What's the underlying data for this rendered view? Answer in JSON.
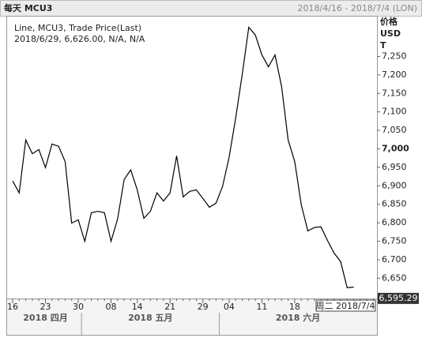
{
  "header": {
    "title": "每天 MCU3",
    "range": "2018/4/16 - 2018/7/4 (LON)"
  },
  "chart_data": {
    "type": "line",
    "legend_lines": [
      "Line, MCU3, Trade Price(Last)",
      "2018/6/29, 6,626.00, N/A, N/A"
    ],
    "axis_title": [
      "价格",
      "USD",
      "T"
    ],
    "categories": [
      "16",
      null,
      null,
      null,
      null,
      "23",
      null,
      null,
      null,
      null,
      "30",
      null,
      null,
      null,
      null,
      "08",
      null,
      null,
      null,
      "14",
      null,
      null,
      null,
      null,
      "21",
      null,
      null,
      null,
      null,
      "29",
      null,
      null,
      null,
      "04",
      null,
      null,
      null,
      null,
      "11",
      null,
      null,
      null,
      null,
      "18",
      null,
      null,
      null,
      null,
      null,
      null,
      null,
      null,
      null,
      null,
      null,
      null
    ],
    "months": [
      "2018 四月",
      "2018 五月",
      "2018 六月"
    ],
    "series": [
      {
        "name": "MCU3",
        "color": "#000000",
        "values": [
          6913,
          6881,
          7024,
          6987,
          6998,
          6949,
          7013,
          7007,
          6966,
          6799,
          6808,
          6750,
          6827,
          6831,
          6827,
          6750,
          6810,
          6917,
          6943,
          6889,
          6812,
          6831,
          6881,
          6859,
          6881,
          6981,
          6870,
          6885,
          6889,
          6866,
          6842,
          6853,
          6898,
          6977,
          7083,
          7201,
          7329,
          7308,
          7254,
          7222,
          7254,
          7169,
          7024,
          6966,
          6849,
          6778,
          6787,
          6789,
          6752,
          6718,
          6695,
          6624,
          6626,
          null,
          null,
          null
        ]
      }
    ],
    "ylim": [
      6595,
      7360
    ],
    "yticks": [
      {
        "value": 6650,
        "label": "6,650"
      },
      {
        "value": 6700,
        "label": "6,700"
      },
      {
        "value": 6750,
        "label": "6,750"
      },
      {
        "value": 6800,
        "label": "6,800"
      },
      {
        "value": 6850,
        "label": "6,850"
      },
      {
        "value": 6900,
        "label": "6,900"
      },
      {
        "value": 6950,
        "label": "6,950"
      },
      {
        "value": 7000,
        "label": "7,000"
      },
      {
        "value": 7050,
        "label": "7,050"
      },
      {
        "value": 7100,
        "label": "7,100"
      },
      {
        "value": 7150,
        "label": "7,150"
      },
      {
        "value": 7200,
        "label": "7,200"
      },
      {
        "value": 7250,
        "label": "7,250"
      }
    ],
    "last_price": {
      "value": 6595.29,
      "label": "6,595.29"
    },
    "cursor_label": "周二 2018/7/4"
  }
}
